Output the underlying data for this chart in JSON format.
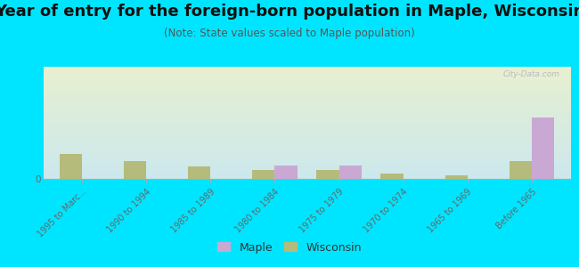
{
  "title": "Year of entry for the foreign-born population in Maple, Wisconsin",
  "subtitle": "(Note: State values scaled to Maple population)",
  "categories": [
    "1995 to Marc...",
    "1990 to 1994",
    "1985 to 1989",
    "1980 to 1984",
    "1975 to 1979",
    "1970 to 1974",
    "1965 to 1969",
    "Before 1965"
  ],
  "maple_values": [
    0,
    0,
    0,
    12,
    12,
    0,
    0,
    55
  ],
  "wisconsin_values": [
    22,
    16,
    11,
    8,
    8,
    5,
    3,
    16
  ],
  "maple_color": "#c9a8d4",
  "wisconsin_color": "#b5bb7a",
  "background_outer": "#00e5ff",
  "background_chart_tl": "#ddeedd",
  "background_chart_tr": "#e8f0d0",
  "background_chart_bl": "#cce8ee",
  "background_chart_br": "#d8f0f0",
  "title_fontsize": 13,
  "subtitle_fontsize": 8.5,
  "tick_label_fontsize": 7,
  "bar_width": 0.35,
  "ylim_max": 100,
  "legend_maple": "Maple",
  "legend_wisconsin": "Wisconsin",
  "watermark": "City-Data.com"
}
